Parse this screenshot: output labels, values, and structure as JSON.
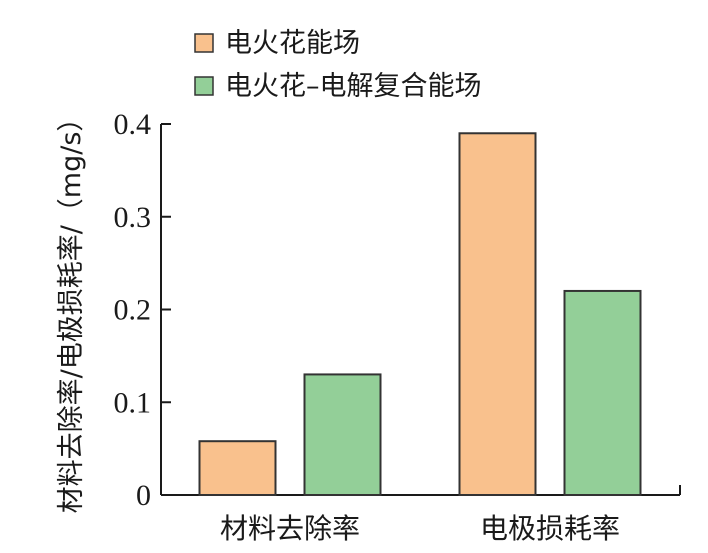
{
  "chart_data": {
    "type": "bar",
    "categories": [
      "材料去除率",
      "电极损耗率"
    ],
    "series": [
      {
        "name": "电火花能场",
        "values": [
          0.058,
          0.39
        ],
        "color": "#F9C18D"
      },
      {
        "name": "电火花–电解复合能场",
        "values": [
          0.13,
          0.22
        ],
        "color": "#93CF98"
      }
    ],
    "ylabel": "材料去除率/电极损耗率/（mg/s）",
    "xlabel": "",
    "ylim": [
      0,
      0.4
    ],
    "yticks": [
      "0",
      "0.1",
      "0.2",
      "0.3",
      "0.4"
    ],
    "legend_position": "top",
    "grid": false
  }
}
